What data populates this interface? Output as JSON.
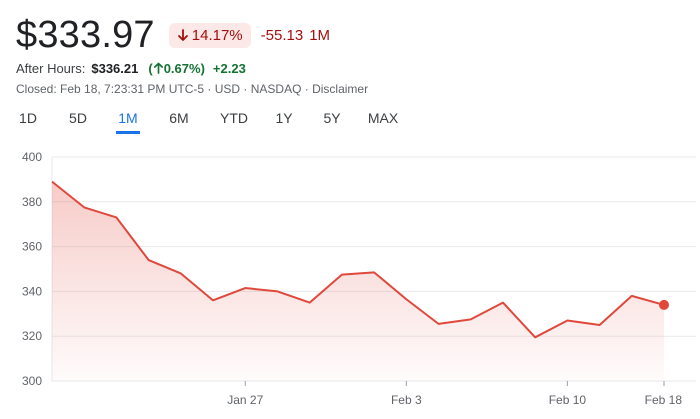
{
  "header": {
    "price": "$333.97",
    "change_pct": "14.17%",
    "change_abs": "-55.13",
    "change_period": "1M",
    "down_arrow_icon": "arrow-down-icon"
  },
  "after_hours": {
    "label": "After Hours:",
    "price": "$336.21",
    "open_paren": "(",
    "pct": "0.67%",
    "close_paren": ")",
    "abs": "+2.23",
    "up_arrow_icon": "arrow-up-icon"
  },
  "closed_line": {
    "text": "Closed: Feb 18, 7:23:31 PM UTC-5 · USD · NASDAQ · ",
    "disclaimer": "Disclaimer"
  },
  "tabs": [
    {
      "label": "1D",
      "active": false
    },
    {
      "label": "5D",
      "active": false
    },
    {
      "label": "1M",
      "active": true
    },
    {
      "label": "6M",
      "active": false
    },
    {
      "label": "YTD",
      "active": false
    },
    {
      "label": "1Y",
      "active": false
    },
    {
      "label": "5Y",
      "active": false
    },
    {
      "label": "MAX",
      "active": false
    }
  ],
  "colors": {
    "line": "#e0483c",
    "area": "#e0483c",
    "grid": "#e8eaed",
    "active_tab": "#1a73e8"
  },
  "chart_data": {
    "type": "area",
    "ylim": [
      300,
      400
    ],
    "yticks": [
      300,
      320,
      340,
      360,
      380,
      400
    ],
    "xticks": [
      {
        "label": "Jan 27",
        "index": 6
      },
      {
        "label": "Feb 3",
        "index": 11
      },
      {
        "label": "Feb 10",
        "index": 16
      },
      {
        "label": "Feb 18",
        "index": 19
      }
    ],
    "grid": true,
    "series": [
      {
        "values": [
          389,
          377.5,
          373,
          354,
          348,
          336,
          341.5,
          340,
          335,
          347.5,
          348.5,
          336.5,
          325.5,
          327.5,
          335,
          319.5,
          327,
          325,
          338,
          333.97
        ]
      }
    ]
  }
}
